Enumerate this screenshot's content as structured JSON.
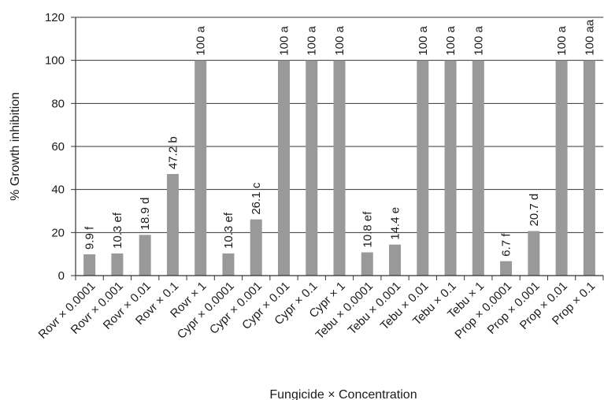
{
  "chart_data": {
    "type": "bar",
    "title": "",
    "xlabel": "Fungicide × Concentration",
    "ylabel": "% Growth inhibition",
    "ylim": [
      0,
      120
    ],
    "yticks": [
      0,
      20,
      40,
      60,
      80,
      100,
      120
    ],
    "grid": true,
    "bar_color": "#999999",
    "categories": [
      "Rovr × 0.0001",
      "Rovr × 0.001",
      "Rovr × 0.01",
      "Rovr × 0.1",
      "Rovr × 1",
      "Cypr × 0.0001",
      "Cypr × 0.001",
      "Cypr × 0.01",
      "Cypr × 0.1",
      "Cypr × 1",
      "Tebu × 0.0001",
      "Tebu × 0.001",
      "Tebu × 0.01",
      "Tebu × 0.1",
      "Tebu × 1",
      "Prop × 0.0001",
      "Prop × 0.001",
      "Prop × 0.01",
      "Prop × 0.1"
    ],
    "values": [
      9.9,
      10.3,
      18.9,
      47.2,
      100,
      10.3,
      26.1,
      100,
      100,
      100,
      10.8,
      14.4,
      100,
      100,
      100,
      6.7,
      20.7,
      100,
      100
    ],
    "data_labels": [
      "9.9 f",
      "10.3 ef",
      "18.9 d",
      "47.2 b",
      "100 a",
      "10.3 ef",
      "26.1 c",
      "100 a",
      "100 a",
      "100 a",
      "10.8 ef",
      "14.4 e",
      "100 a",
      "100 a",
      "100 a",
      "6.7 f",
      "20.7 d",
      "100 a",
      "100 aa"
    ]
  }
}
